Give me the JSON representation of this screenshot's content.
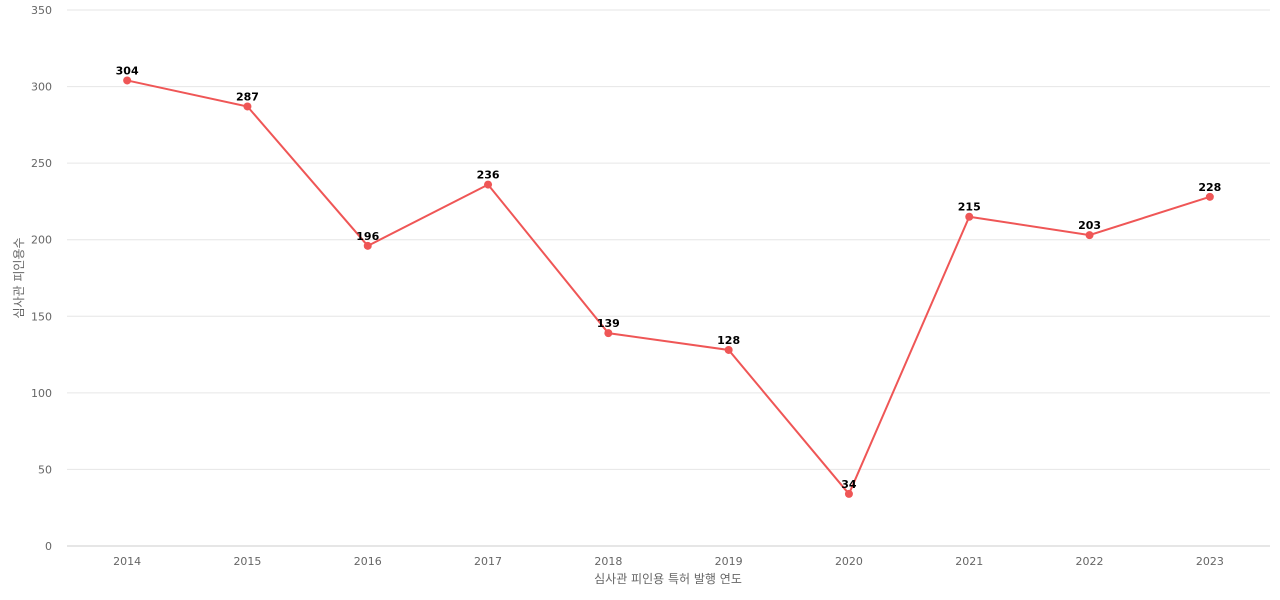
{
  "chart_data": {
    "type": "line",
    "title": "",
    "xlabel": "심사관 피인용 특허 발행 연도",
    "ylabel": "심사관 피인용수",
    "categories": [
      "2014",
      "2015",
      "2016",
      "2017",
      "2018",
      "2019",
      "2020",
      "2021",
      "2022",
      "2023"
    ],
    "series": [
      {
        "values": [
          304,
          287,
          196,
          236,
          139,
          128,
          34,
          215,
          203,
          228
        ]
      }
    ],
    "ylim": [
      0,
      350
    ],
    "yticks": [
      0,
      50,
      100,
      150,
      200,
      250,
      300,
      350
    ],
    "grid": true,
    "legend": "none",
    "colors": {
      "line": "#ef5656",
      "grid": "#e6e6e6",
      "tick_text": "#666666",
      "label_text": "#000000"
    }
  }
}
